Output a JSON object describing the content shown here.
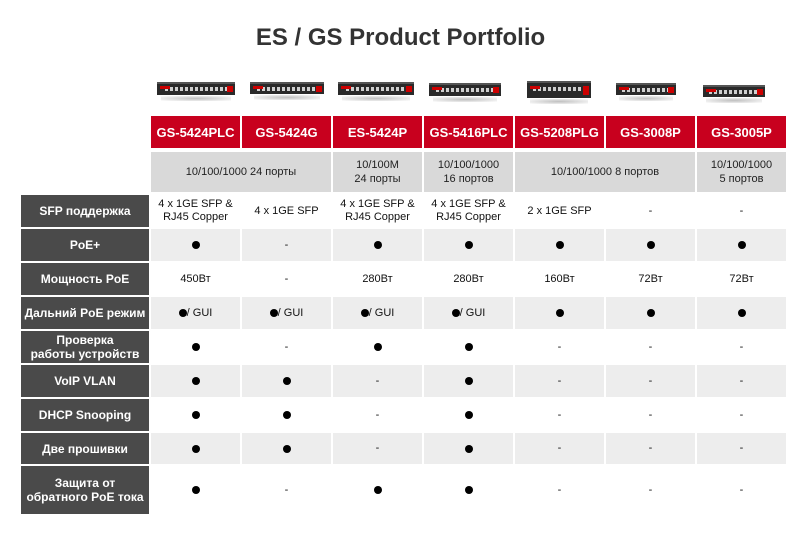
{
  "title": "ES / GS Product Portfolio",
  "columns": [
    {
      "model": "GS-5424PLC"
    },
    {
      "model": "GS-5424G"
    },
    {
      "model": "ES-5424P"
    },
    {
      "model": "GS-5416PLC"
    },
    {
      "model": "GS-5208PLG"
    },
    {
      "model": "GS-3008P"
    },
    {
      "model": "GS-3005P"
    }
  ],
  "groups": [
    {
      "text": "10/100/1000 24 порты"
    },
    {
      "text": "10/100M\n24 порты"
    },
    {
      "text": "10/100/1000\n16 портов"
    },
    {
      "text": "10/100/1000 8 портов"
    },
    {
      "text": "10/100/1000\n5 портов"
    }
  ],
  "rows": [
    {
      "label": "SFP поддержка",
      "cells": [
        "4 x 1GE SFP &\nRJ45 Copper",
        "4 x 1GE SFP",
        "4 x 1GE SFP &\nRJ45 Copper",
        "4 x 1GE SFP &\nRJ45 Copper",
        "2 x 1GE SFP",
        "-",
        "-"
      ]
    },
    {
      "label": "PoE+",
      "cells": [
        "●",
        "-",
        "●",
        "●",
        "●",
        "●",
        "●"
      ]
    },
    {
      "label": "Мощность PoE",
      "cells": [
        "450Вт",
        "-",
        "280Вт",
        "280Вт",
        "160Вт",
        "72Вт",
        "72Вт"
      ]
    },
    {
      "label": "Дальний PoE режим",
      "cells": [
        "● / GUI",
        "● / GUI",
        "● / GUI",
        "● / GUI",
        "●",
        "●",
        "●"
      ]
    },
    {
      "label": "Проверка\nработы устройств",
      "cells": [
        "●",
        "-",
        "●",
        "●",
        "-",
        "-",
        "-"
      ]
    },
    {
      "label": "VoIP VLAN",
      "cells": [
        "●",
        "●",
        "-",
        "●",
        "-",
        "-",
        "-"
      ]
    },
    {
      "label": "DHCP Snooping",
      "cells": [
        "●",
        "●",
        "-",
        "●",
        "-",
        "-",
        "-"
      ]
    },
    {
      "label": "Две прошивки",
      "cells": [
        "●",
        "●",
        "-",
        "●",
        "-",
        "-",
        "-"
      ]
    },
    {
      "label": "Защита от\nобратного PoE тока",
      "cells": [
        "●",
        "-",
        "●",
        "●",
        "-",
        "-",
        "-"
      ]
    }
  ],
  "colors": {
    "header_red": "#c8001e",
    "label_gray": "#4a4a4a",
    "group_gray": "#d9d9d9"
  }
}
